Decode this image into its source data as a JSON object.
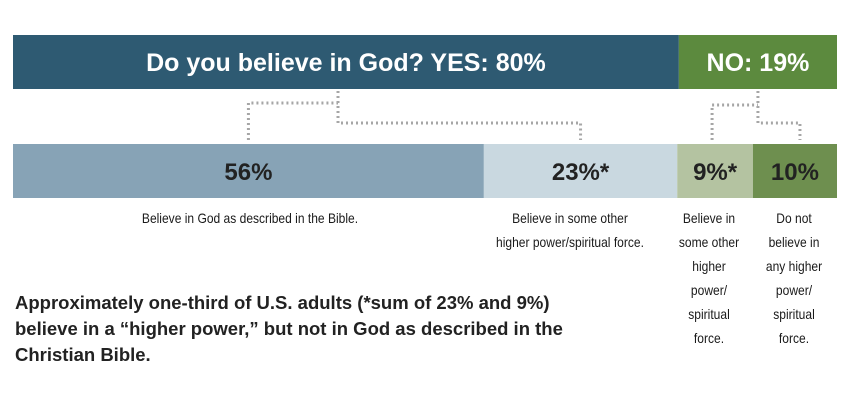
{
  "chart_data": {
    "type": "bar",
    "top_bar": {
      "segments": [
        {
          "label": "Do you believe in God? YES: 80%",
          "value": 80,
          "color": "#2e5a72"
        },
        {
          "label": "NO: 19%",
          "value": 19,
          "color": "#5c8a3e"
        }
      ]
    },
    "bottom_bar": {
      "segments": [
        {
          "label": "56%",
          "value": 56,
          "parent": 0,
          "color": "#87a3b6",
          "caption": [
            "Believe in God as described in the Bible."
          ]
        },
        {
          "label": "23%*",
          "value": 23,
          "parent": 0,
          "color": "#c9d8e0",
          "caption": [
            "Believe in some other",
            "higher power/spiritual force."
          ]
        },
        {
          "label": "9%*",
          "value": 9,
          "parent": 1,
          "color": "#b4c3a1",
          "caption": [
            "Believe in",
            "some other",
            "higher",
            "power/",
            "spiritual",
            "force."
          ]
        },
        {
          "label": "10%",
          "value": 10,
          "parent": 1,
          "color": "#6e8f4f",
          "caption": [
            "Do not",
            "believe in",
            "any higher",
            "power/",
            "spiritual",
            "force."
          ]
        }
      ]
    },
    "text_color": "#222222",
    "connector_color": "#a6a6a6"
  },
  "note": [
    "Approximately one-third of U.S. adults (*sum of 23% and 9%)",
    "believe in a “higher power,” but not in God as described in the",
    "Christian Bible."
  ]
}
